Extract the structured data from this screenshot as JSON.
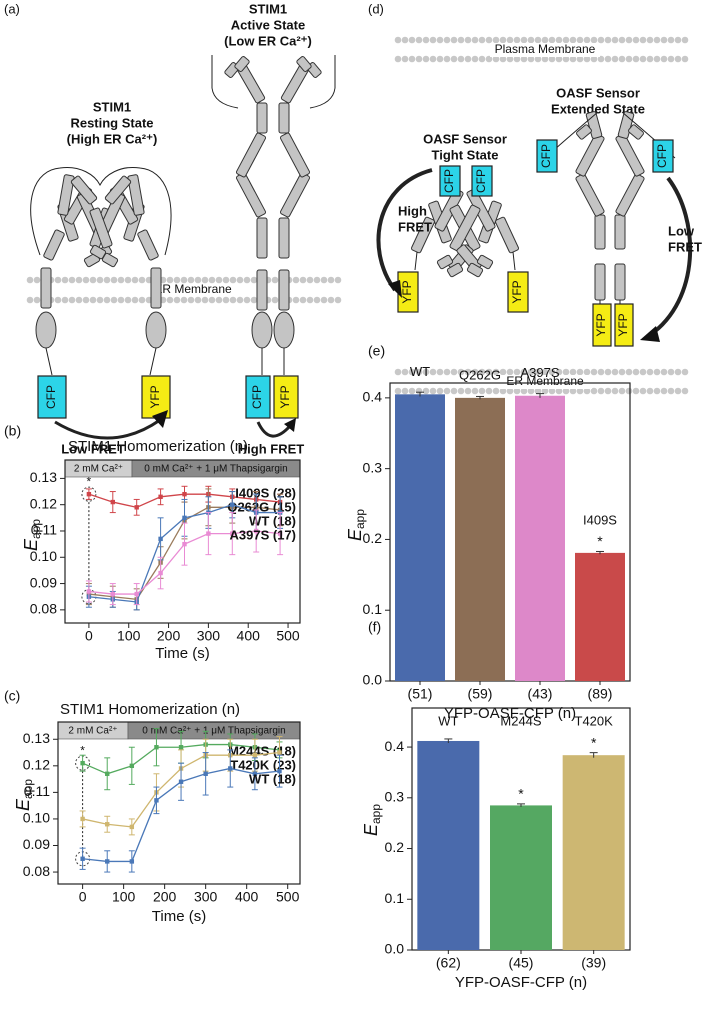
{
  "figure_a": {
    "label": "(a)",
    "resting_title": [
      "STIM1",
      "Resting State",
      "(High ER Ca²⁺)"
    ],
    "active_title": [
      "STIM1",
      "Active State",
      "(Low ER Ca²⁺)"
    ],
    "membrane": "ER Membrane",
    "fluorophores": [
      "CFP",
      "YFP",
      "CFP",
      "YFP"
    ],
    "fret": [
      "Low FRET",
      "High FRET"
    ]
  },
  "figure_d": {
    "label": "(d)",
    "plasma_membrane": "Plasma Membrane",
    "er_membrane": "ER Membrane",
    "extended_title": [
      "OASF Sensor",
      "Extended State"
    ],
    "tight_title": [
      "OASF Sensor",
      "Tight State"
    ],
    "fluorophores": [
      "CFP",
      "CFP",
      "YFP",
      "YFP",
      "CFP",
      "CFP",
      "YFP",
      "YFP"
    ],
    "fret": [
      [
        "High",
        "FRET"
      ],
      [
        "Low",
        "FRET"
      ]
    ]
  },
  "chart_data": [
    {
      "type": "line",
      "panel": "(b)",
      "title": "STIM1 Homomerization (n)",
      "x_label": "Time (s)",
      "y_label": "E",
      "y_label_sub": "app",
      "phases": [
        "2 mM Ca²⁺",
        "0 mM Ca²⁺ + 1 μM Thapsigargin"
      ],
      "annotation": "*",
      "x": [
        0,
        60,
        120,
        180,
        240,
        300,
        360,
        420,
        480
      ],
      "xlim": [
        -60,
        530
      ],
      "xticks": [
        0,
        100,
        200,
        300,
        400,
        500
      ],
      "ylim": [
        0.075,
        0.137
      ],
      "yticks": [
        0.08,
        0.09,
        {
          "value": 0.1,
          "label": "0.10"
        },
        0.11,
        0.12,
        0.13
      ],
      "series": [
        {
          "name": "I409S (28)",
          "color": "#d0454a",
          "values": [
            0.124,
            0.121,
            0.119,
            0.123,
            0.124,
            0.124,
            0.123,
            0.122,
            0.121
          ],
          "errors": [
            0.002,
            0.004,
            0.003,
            0.003,
            0.003,
            0.003,
            0.003,
            0.003,
            0.003
          ]
        },
        {
          "name": "Q262G (15)",
          "color": "#9a7b5c",
          "values": [
            0.086,
            0.085,
            0.084,
            0.098,
            0.114,
            0.119,
            0.119,
            0.119,
            0.118
          ],
          "errors": [
            0.004,
            0.004,
            0.004,
            0.006,
            0.007,
            0.007,
            0.006,
            0.006,
            0.006
          ]
        },
        {
          "name": "WT (18)",
          "color": "#4a78b8",
          "values": [
            0.085,
            0.084,
            0.083,
            0.107,
            0.115,
            0.117,
            0.12,
            0.117,
            0.117
          ],
          "errors": [
            0.004,
            0.003,
            0.003,
            0.008,
            0.007,
            0.006,
            0.005,
            0.007,
            0.006
          ]
        },
        {
          "name": "A397S (17)",
          "color": "#e98bd4",
          "values": [
            0.087,
            0.086,
            0.086,
            0.094,
            0.105,
            0.109,
            0.109,
            0.11,
            0.109
          ],
          "errors": [
            0.004,
            0.004,
            0.004,
            0.006,
            0.008,
            0.008,
            0.008,
            0.008,
            0.008
          ]
        }
      ]
    },
    {
      "type": "line",
      "panel": "(c)",
      "title": "STIM1 Homomerization (n)",
      "x_label": "Time (s)",
      "y_label": "E",
      "y_label_sub": "app",
      "phases": [
        "2 mM Ca²⁺",
        "0 mM Ca²⁺ + 1 μM Thapsigargin"
      ],
      "annotation": "*",
      "x": [
        0,
        60,
        120,
        180,
        240,
        300,
        360,
        420,
        480
      ],
      "xlim": [
        -60,
        530
      ],
      "xticks": [
        0,
        100,
        200,
        300,
        400,
        500
      ],
      "ylim": [
        0.0755,
        0.1365
      ],
      "yticks": [
        0.08,
        0.09,
        {
          "value": 0.1,
          "label": "0.10"
        },
        0.11,
        0.12,
        0.13
      ],
      "series": [
        {
          "name": "M244S (18)",
          "color": "#54aa5e",
          "values": [
            0.121,
            0.117,
            0.12,
            0.127,
            0.127,
            0.128,
            0.128,
            0.127,
            0.126
          ],
          "errors": [
            0.003,
            0.006,
            0.007,
            0.007,
            0.006,
            0.005,
            0.004,
            0.005,
            0.003
          ]
        },
        {
          "name": "T420K (23)",
          "color": "#cfb66f",
          "values": [
            0.1,
            0.098,
            0.097,
            0.11,
            0.119,
            0.124,
            0.124,
            0.124,
            0.125
          ],
          "errors": [
            0.003,
            0.003,
            0.003,
            0.007,
            0.007,
            0.006,
            0.006,
            0.006,
            0.006
          ]
        },
        {
          "name": "WT (18)",
          "color": "#4a78b8",
          "values": [
            0.085,
            0.084,
            0.084,
            0.107,
            0.114,
            0.117,
            0.119,
            0.117,
            0.118
          ],
          "errors": [
            0.004,
            0.004,
            0.004,
            0.005,
            0.007,
            0.008,
            0.007,
            0.006,
            0.006
          ]
        }
      ]
    },
    {
      "type": "bar",
      "panel": "(e)",
      "x_label": "YFP-OASF-CFP (n)",
      "y_label": "E",
      "y_label_sub": "app",
      "categories": [
        "(51)",
        "(59)",
        "(43)",
        "(89)"
      ],
      "top_labels": [
        "WT",
        "Q262G",
        "A397S",
        "I409S"
      ],
      "annotations": [
        null,
        null,
        null,
        "*"
      ],
      "values": [
        0.405,
        0.4,
        0.403,
        0.181
      ],
      "errors": [
        0.003,
        0.002,
        0.003,
        0.002
      ],
      "colors": [
        "#4a6aac",
        "#8c6e55",
        "#dd88c9",
        "#c94a4a"
      ],
      "ylim": [
        0,
        0.421
      ],
      "yticks": [
        {
          "value": 0,
          "label": "0.0"
        },
        0.1,
        0.2,
        0.3,
        0.4
      ]
    },
    {
      "type": "bar",
      "panel": "(f)",
      "x_label": "YFP-OASF-CFP (n)",
      "y_label": "E",
      "y_label_sub": "app",
      "categories": [
        "(62)",
        "(45)",
        "(39)"
      ],
      "top_labels": [
        "WT",
        "M244S",
        "T420K"
      ],
      "annotations": [
        null,
        "*",
        "*"
      ],
      "values": [
        0.412,
        0.285,
        0.384
      ],
      "errors": [
        0.004,
        0.003,
        0.005
      ],
      "colors": [
        "#4a6aac",
        "#55a862",
        "#cdb772"
      ],
      "ylim": [
        0,
        0.477
      ],
      "yticks": [
        {
          "value": 0,
          "label": "0.0"
        },
        0.1,
        0.2,
        0.3,
        0.4
      ]
    }
  ]
}
